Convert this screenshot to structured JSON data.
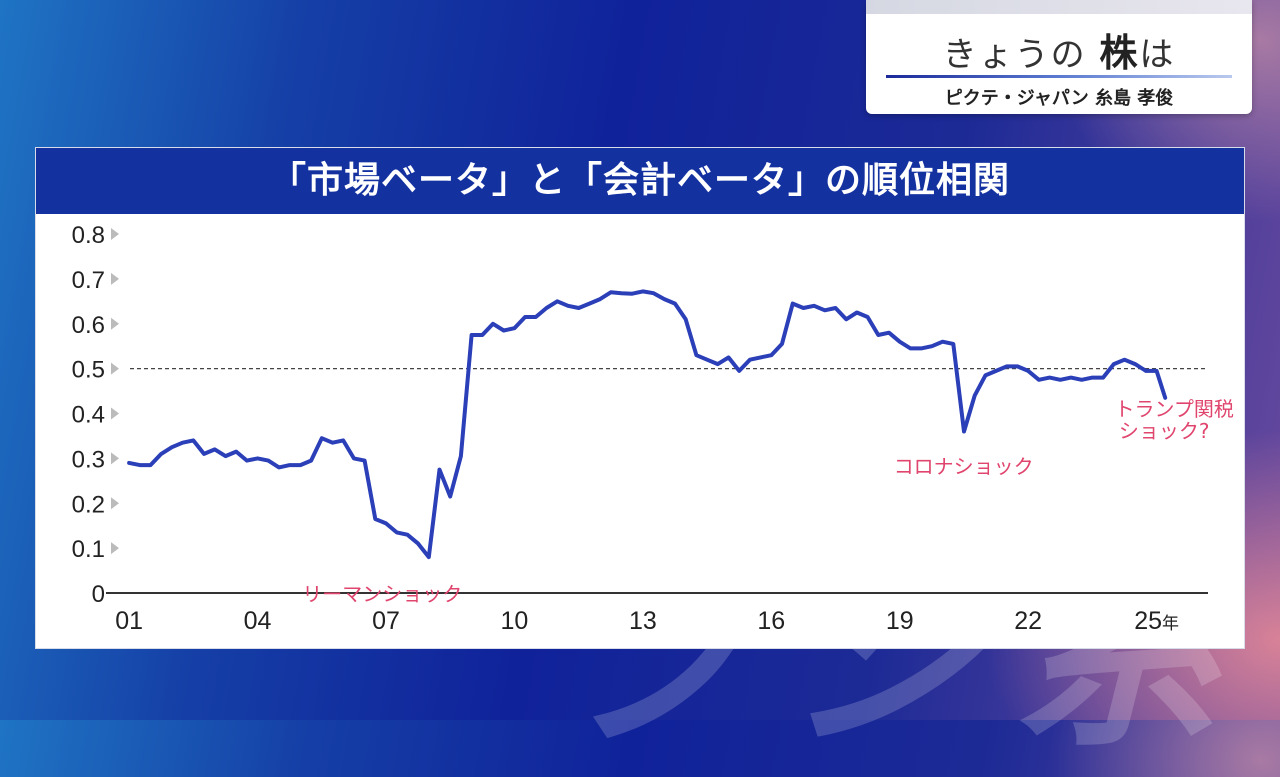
{
  "program": {
    "title_prefix": "きょうの",
    "title_emph": "株",
    "title_suffix": "は",
    "subtitle": "ピクテ・ジャパン 糸島 孝俊"
  },
  "panel": {
    "title": "「市場ベータ」と「会計ベータ」の順位相関"
  },
  "colors": {
    "line": "#2b3fb8",
    "annotation": "#e0456e",
    "header": "#1431a0"
  },
  "chart_data": {
    "type": "line",
    "title": "「市場ベータ」と「会計ベータ」の順位相関",
    "xlabel": "年",
    "ylabel": "",
    "xlim": [
      2001,
      2026.2
    ],
    "ylim": [
      0,
      0.8
    ],
    "x_ticks": [
      2001,
      2004,
      2007,
      2010,
      2013,
      2016,
      2019,
      2022,
      2025
    ],
    "x_tick_labels": [
      "01",
      "04",
      "07",
      "10",
      "13",
      "16",
      "19",
      "22",
      "25年"
    ],
    "y_ticks": [
      0,
      0.1,
      0.2,
      0.3,
      0.4,
      0.5,
      0.6,
      0.7,
      0.8
    ],
    "y_tick_labels": [
      "0",
      "0.1",
      "0.2",
      "0.3",
      "0.4",
      "0.5",
      "0.6",
      "0.7",
      "0.8"
    ],
    "reference_line": {
      "y": 0.5,
      "style": "dashed"
    },
    "grid": false,
    "series": [
      {
        "x": [
          2001.0,
          2001.25,
          2001.5,
          2001.75,
          2002.0,
          2002.25,
          2002.5,
          2002.75,
          2003.0,
          2003.25,
          2003.5,
          2003.75,
          2004.0,
          2004.25,
          2004.5,
          2004.75,
          2005.0,
          2005.25,
          2005.5,
          2005.75,
          2006.0,
          2006.25,
          2006.5,
          2006.75,
          2007.0,
          2007.25,
          2007.5,
          2007.75,
          2008.0,
          2008.25,
          2008.5,
          2008.75,
          2009.0,
          2009.25,
          2009.5,
          2009.75,
          2010.0,
          2010.25,
          2010.5,
          2010.75,
          2011.0,
          2011.25,
          2011.5,
          2011.75,
          2012.0,
          2012.25,
          2012.5,
          2012.75,
          2013.0,
          2013.25,
          2013.5,
          2013.75,
          2014.0,
          2014.25,
          2014.5,
          2014.75,
          2015.0,
          2015.25,
          2015.5,
          2015.75,
          2016.0,
          2016.25,
          2016.5,
          2016.75,
          2017.0,
          2017.25,
          2017.5,
          2017.75,
          2018.0,
          2018.25,
          2018.5,
          2018.75,
          2019.0,
          2019.25,
          2019.5,
          2019.75,
          2020.0,
          2020.25,
          2020.5,
          2020.75,
          2021.0,
          2021.25,
          2021.5,
          2021.75,
          2022.0,
          2022.25,
          2022.5,
          2022.75,
          2023.0,
          2023.25,
          2023.5,
          2023.75,
          2024.0,
          2024.25,
          2024.5,
          2024.75,
          2025.0,
          2025.2
        ],
        "y": [
          0.29,
          0.285,
          0.285,
          0.31,
          0.325,
          0.335,
          0.34,
          0.31,
          0.32,
          0.305,
          0.315,
          0.295,
          0.3,
          0.295,
          0.28,
          0.285,
          0.285,
          0.295,
          0.345,
          0.335,
          0.34,
          0.3,
          0.295,
          0.165,
          0.155,
          0.135,
          0.13,
          0.11,
          0.08,
          0.275,
          0.215,
          0.305,
          0.575,
          0.575,
          0.6,
          0.585,
          0.59,
          0.615,
          0.615,
          0.635,
          0.65,
          0.64,
          0.635,
          0.645,
          0.655,
          0.67,
          0.668,
          0.667,
          0.672,
          0.668,
          0.655,
          0.645,
          0.61,
          0.53,
          0.52,
          0.51,
          0.525,
          0.495,
          0.52,
          0.525,
          0.53,
          0.555,
          0.645,
          0.635,
          0.64,
          0.63,
          0.635,
          0.61,
          0.625,
          0.615,
          0.575,
          0.58,
          0.56,
          0.545,
          0.545,
          0.55,
          0.56,
          0.555,
          0.36,
          0.44,
          0.485,
          0.495,
          0.505,
          0.505,
          0.495,
          0.475,
          0.48,
          0.475,
          0.48,
          0.475,
          0.48,
          0.48,
          0.51,
          0.52,
          0.51,
          0.495,
          0.495,
          0.435
        ]
      }
    ],
    "annotations": [
      {
        "text": "リーマンショック",
        "x": 2007.8,
        "y": 0.08
      },
      {
        "text": "コロナショック",
        "x": 2020.4,
        "y": 0.36
      },
      {
        "text_lines": [
          "トランプ関税",
          "ショック?"
        ],
        "x": 2025.2,
        "y": 0.435
      }
    ]
  }
}
